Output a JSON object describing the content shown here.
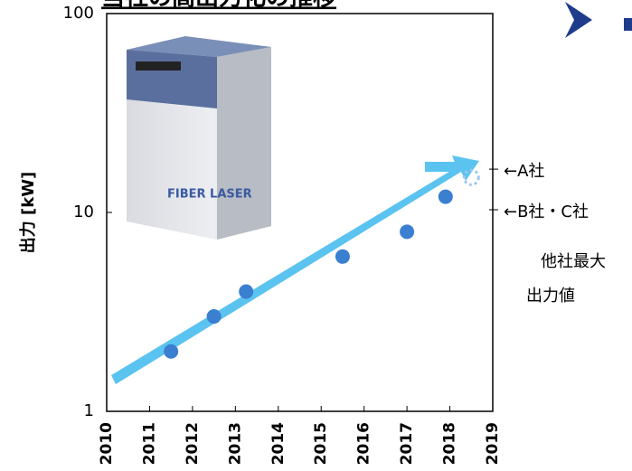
{
  "chart_data": {
    "type": "scatter",
    "title": "当社の高出力化の推移",
    "y_label": "出力 [kW]",
    "xlim": [
      2010,
      2019
    ],
    "xticks": [
      2010,
      2011,
      2012,
      2013,
      2014,
      2015,
      2016,
      2017,
      2018,
      2019
    ],
    "ylim": [
      1,
      100
    ],
    "yticks": [
      1,
      10,
      100
    ],
    "log_y": true,
    "series": [
      {
        "color": "#3a7fd0",
        "x": [
          2011.5,
          2012.5,
          2013.25,
          2015.5,
          2017,
          2017.9
        ],
        "values": [
          2,
          3,
          4,
          6,
          8,
          12
        ]
      },
      {
        "color": "#9ec8ec",
        "x": [
          2018.5
        ],
        "values": [
          15
        ]
      }
    ],
    "annotations": [
      {
        "label": "←A社",
        "value": 16
      },
      {
        "label": "←B社・C社",
        "value": 10
      }
    ],
    "note": [
      "他社最大",
      "出力値"
    ]
  }
}
